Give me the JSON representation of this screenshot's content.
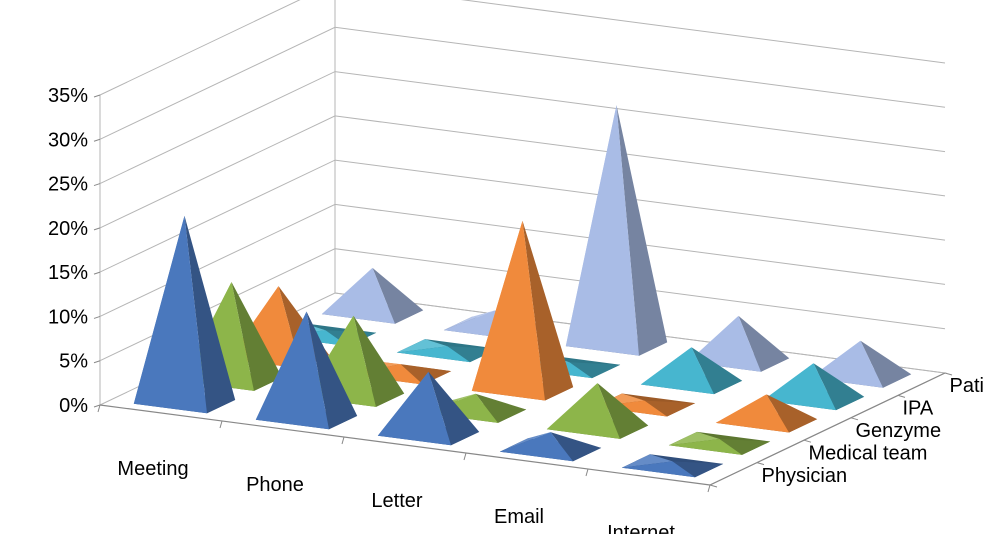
{
  "chart_data": {
    "type": "3d-pyramid",
    "categories": [
      "Meeting",
      "Phone",
      "Letter",
      "Email",
      "Internet"
    ],
    "ylim": [
      0,
      35
    ],
    "yticks": [
      "0%",
      "5%",
      "10%",
      "15%",
      "20%",
      "25%",
      "30%",
      "35%"
    ],
    "series": [
      {
        "name": "Physician",
        "color": "#4a78bd",
        "values": [
          21,
          12,
          7,
          2,
          0.5
        ]
      },
      {
        "name": "Medical team",
        "color": "#8db54a",
        "values": [
          11,
          9,
          2,
          5,
          0.5
        ]
      },
      {
        "name": "Genzyme",
        "color": "#f08a3c",
        "values": [
          8,
          1,
          19,
          0.5,
          3
        ]
      },
      {
        "name": "IPA",
        "color": "#47b6cf",
        "values": [
          0.5,
          0.5,
          0.5,
          4,
          4
        ]
      },
      {
        "name": "Patient group",
        "color": "#a9bce6",
        "values": [
          5,
          2,
          27,
          5,
          4
        ]
      }
    ],
    "legend": "right",
    "grid": true
  }
}
